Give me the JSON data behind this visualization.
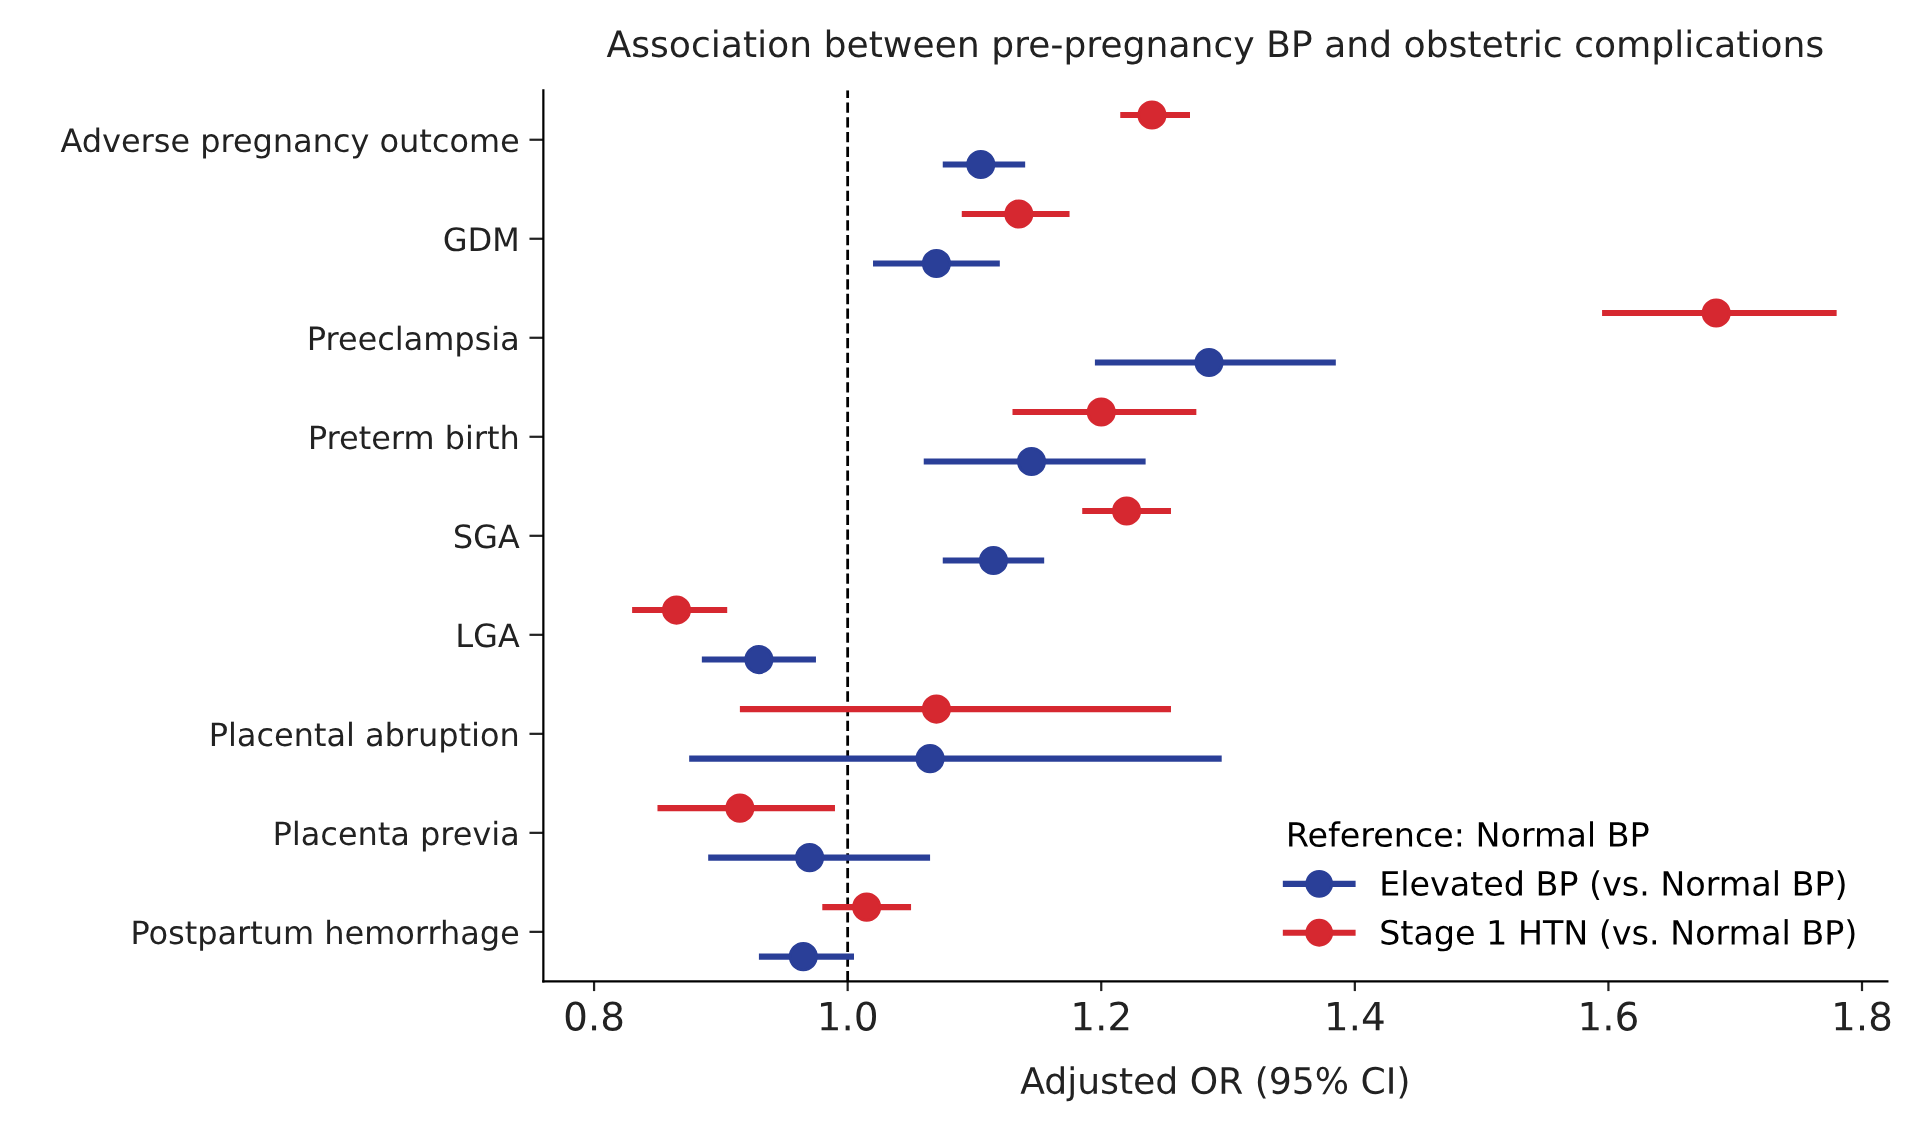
{
  "chart_data": {
    "type": "scatter",
    "orientation": "horizontal",
    "title": "Association between pre-pregnancy BP and obstetric complications",
    "xlabel": "Adjusted OR (95% CI)",
    "categories": [
      "Adverse pregnancy outcome",
      "GDM",
      "Preeclampsia",
      "Preterm birth",
      "SGA",
      "LGA",
      "Placental abruption",
      "Placenta previa",
      "Postpartum hemorrhage"
    ],
    "legend_title": "Reference: Normal BP",
    "series": [
      {
        "name": "Elevated BP (vs. Normal BP)",
        "color": "#2a3f98",
        "values": [
          1.105,
          1.07,
          1.285,
          1.145,
          1.115,
          0.93,
          1.065,
          0.97,
          0.965
        ],
        "errors": [
          [
            1.075,
            1.14
          ],
          [
            1.02,
            1.12
          ],
          [
            1.195,
            1.385
          ],
          [
            1.06,
            1.235
          ],
          [
            1.075,
            1.155
          ],
          [
            0.885,
            0.975
          ],
          [
            0.875,
            1.295
          ],
          [
            0.89,
            1.065
          ],
          [
            0.93,
            1.005
          ]
        ]
      },
      {
        "name": "Stage 1 HTN (vs. Normal BP)",
        "color": "#d62830",
        "values": [
          1.24,
          1.135,
          1.685,
          1.2,
          1.22,
          0.865,
          1.07,
          0.915,
          1.015
        ],
        "errors": [
          [
            1.215,
            1.27
          ],
          [
            1.09,
            1.175
          ],
          [
            1.595,
            1.78
          ],
          [
            1.13,
            1.275
          ],
          [
            1.185,
            1.255
          ],
          [
            0.83,
            0.905
          ],
          [
            0.915,
            1.255
          ],
          [
            0.85,
            0.99
          ],
          [
            0.98,
            1.05
          ]
        ]
      }
    ],
    "xlim": [
      0.76,
      1.82
    ],
    "xticks": [
      {
        "value": 0.8,
        "label": "0.8"
      },
      {
        "value": 1.0,
        "label": "1.0"
      },
      {
        "value": 1.2,
        "label": "1.2"
      },
      {
        "value": 1.4,
        "label": "1.4"
      },
      {
        "value": 1.6,
        "label": "1.6"
      },
      {
        "value": 1.8,
        "label": "1.8"
      }
    ],
    "ref_lines": [
      {
        "axis": "x",
        "value": 1.0,
        "color": "#000000",
        "line_style": "dashed"
      }
    ],
    "marker": "circle",
    "grid": false,
    "legend": "bottom right"
  }
}
